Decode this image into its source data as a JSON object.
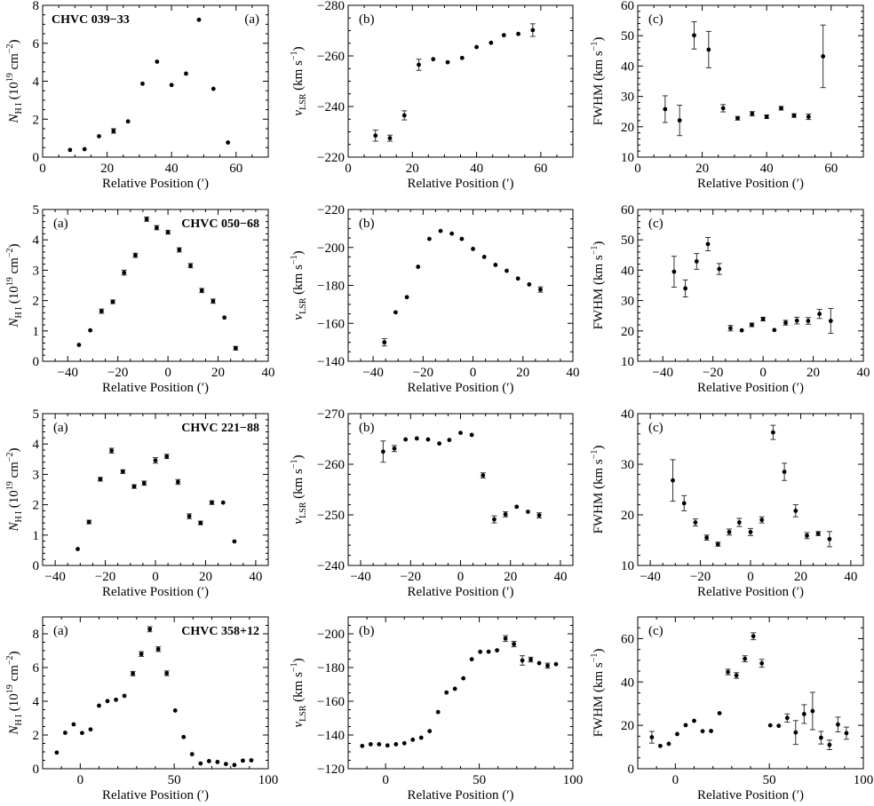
{
  "figure": {
    "xlabel": "Relative Position (′)"
  },
  "chart_data": [
    {
      "type": "scatter",
      "row": 0,
      "col": 0,
      "panel_tag": "(a)",
      "cloud_label": "CHVC 039−33",
      "ylabel": "N_HI (10^19 cm^-2)",
      "xlabel": "Relative Position (′)",
      "xlim": [
        0,
        70
      ],
      "ylim": [
        0,
        8
      ],
      "xticks": [
        0,
        20,
        40,
        60
      ],
      "yticks": [
        0,
        2,
        4,
        6,
        8
      ],
      "x": [
        8.5,
        13,
        17.5,
        22,
        26.5,
        31,
        35.5,
        40,
        44.5,
        48.5,
        53,
        57.5
      ],
      "y": [
        0.38,
        0.42,
        1.1,
        1.38,
        1.88,
        3.87,
        5.03,
        3.8,
        4.4,
        7.24,
        3.6,
        0.77
      ],
      "err": [
        0.05,
        0.05,
        0.07,
        0.12,
        0.07,
        0.08,
        0.08,
        0.07,
        0.07,
        0.07,
        0.07,
        0.08
      ],
      "y_inverted": false
    },
    {
      "type": "scatter",
      "row": 0,
      "col": 1,
      "panel_tag": "(b)",
      "ylabel": "v_LSR (km s^-1)",
      "xlabel": "Relative Position (′)",
      "xlim": [
        0,
        70
      ],
      "ylim": [
        -220,
        -280
      ],
      "xticks": [
        0,
        20,
        40,
        60
      ],
      "yticks": [
        -220,
        -240,
        -260,
        -280
      ],
      "x": [
        8.5,
        13,
        17.5,
        22,
        26.5,
        31,
        35.5,
        40,
        44.5,
        48.5,
        53,
        57.5
      ],
      "y": [
        -228.5,
        -227.5,
        -236.5,
        -256.5,
        -258.7,
        -257.5,
        -259.2,
        -263.5,
        -265.2,
        -268.2,
        -268.7,
        -270.2
      ],
      "err": [
        2.2,
        1.2,
        1.8,
        2.2,
        0.4,
        0.4,
        0.4,
        0.4,
        0.4,
        0.4,
        0.4,
        2.5
      ]
    },
    {
      "type": "scatter",
      "row": 0,
      "col": 2,
      "panel_tag": "(c)",
      "ylabel": "FWHM (km s^-1)",
      "xlabel": "Relative Position (′)",
      "xlim": [
        0,
        70
      ],
      "ylim": [
        10,
        60
      ],
      "xticks": [
        0,
        20,
        40,
        60
      ],
      "yticks": [
        10,
        20,
        30,
        40,
        50,
        60
      ],
      "x": [
        8.5,
        13,
        17.5,
        22,
        26.5,
        31,
        35.5,
        40,
        44.5,
        48.5,
        53,
        57.5
      ],
      "y": [
        25.8,
        22.1,
        50.1,
        45.4,
        26.1,
        22.8,
        24.3,
        23.3,
        26.1,
        23.7,
        23.3,
        43.2
      ],
      "err": [
        4.4,
        5.0,
        4.5,
        6.0,
        1.2,
        0.6,
        0.7,
        0.6,
        0.6,
        0.6,
        0.9,
        10.3
      ]
    },
    {
      "type": "scatter",
      "row": 1,
      "col": 0,
      "panel_tag": "(a)",
      "cloud_label": "CHVC 050−68",
      "ylabel": "N_HI (10^19 cm^-2)",
      "xlabel": "Relative Position (′)",
      "xlim": [
        -50,
        40
      ],
      "ylim": [
        0,
        5
      ],
      "xticks": [
        -40,
        -20,
        0,
        20,
        40
      ],
      "yticks": [
        0,
        1,
        2,
        3,
        4,
        5
      ],
      "x": [
        -35.5,
        -31,
        -26.5,
        -22,
        -17.5,
        -13,
        -8.5,
        -4.5,
        0,
        4.5,
        9,
        13.5,
        18,
        22.5,
        27
      ],
      "y": [
        0.54,
        1.02,
        1.65,
        1.96,
        2.92,
        3.49,
        4.68,
        4.4,
        4.25,
        3.67,
        3.15,
        2.33,
        1.98,
        1.44,
        0.43
      ],
      "err": [
        0.05,
        0.05,
        0.07,
        0.06,
        0.08,
        0.07,
        0.07,
        0.07,
        0.06,
        0.07,
        0.07,
        0.07,
        0.07,
        0.05,
        0.06
      ]
    },
    {
      "type": "scatter",
      "row": 1,
      "col": 1,
      "panel_tag": "(b)",
      "ylabel": "v_LSR (km s^-1)",
      "xlabel": "Relative Position (′)",
      "xlim": [
        -50,
        40
      ],
      "ylim": [
        -140,
        -220
      ],
      "xticks": [
        -40,
        -20,
        0,
        20,
        40
      ],
      "yticks": [
        -140,
        -160,
        -180,
        -200,
        -220
      ],
      "x": [
        -35.5,
        -31,
        -26.5,
        -22,
        -17.5,
        -13,
        -8.5,
        -4.5,
        0,
        4.5,
        9,
        13.5,
        18,
        22.5,
        27
      ],
      "y": [
        -150,
        -165.8,
        -173.8,
        -189.8,
        -204.5,
        -208.7,
        -207.3,
        -204.5,
        -199.2,
        -195,
        -190.8,
        -187.7,
        -183.6,
        -180.5,
        -177.8
      ],
      "err": [
        1.9,
        0.9,
        0.9,
        0.9,
        0.4,
        0.4,
        0.4,
        0.4,
        0.4,
        0.4,
        0.4,
        0.4,
        0.4,
        0.4,
        1.4
      ]
    },
    {
      "type": "scatter",
      "row": 1,
      "col": 2,
      "panel_tag": "(c)",
      "ylabel": "FWHM (km s^-1)",
      "xlabel": "Relative Position (′)",
      "xlim": [
        -50,
        40
      ],
      "ylim": [
        10,
        60
      ],
      "xticks": [
        -40,
        -20,
        0,
        20,
        40
      ],
      "yticks": [
        10,
        20,
        30,
        40,
        50,
        60
      ],
      "x": [
        -35.5,
        -31,
        -26.5,
        -22,
        -17.5,
        -13,
        -8.5,
        -4.5,
        0,
        4.5,
        9,
        13.5,
        18,
        22.5,
        27
      ],
      "y": [
        39.5,
        34,
        42.9,
        48.6,
        40.4,
        20.9,
        20.2,
        22,
        23.9,
        20.3,
        22.7,
        23.4,
        23.3,
        25.6,
        23.3
      ],
      "err": [
        5.1,
        2.8,
        2.6,
        2.2,
        1.8,
        0.9,
        0.5,
        0.6,
        0.6,
        0.5,
        0.8,
        1.1,
        1.1,
        1.5,
        4.1
      ]
    },
    {
      "type": "scatter",
      "row": 2,
      "col": 0,
      "panel_tag": "(a)",
      "cloud_label": "CHVC 221−88",
      "ylabel": "N_HI (10^19 cm^-2)",
      "xlabel": "Relative Position (′)",
      "xlim": [
        -45,
        45
      ],
      "ylim": [
        0,
        5
      ],
      "xticks": [
        -40,
        -20,
        0,
        20,
        40
      ],
      "yticks": [
        0,
        1,
        2,
        3,
        4,
        5
      ],
      "x": [
        -31,
        -26.5,
        -22,
        -17.5,
        -13,
        -8.5,
        -4.5,
        0,
        4.5,
        9,
        13.5,
        18,
        22.5,
        27,
        31.5
      ],
      "y": [
        0.54,
        1.43,
        2.84,
        3.78,
        3.09,
        2.6,
        2.71,
        3.46,
        3.59,
        2.75,
        1.62,
        1.4,
        2.07,
        2.07,
        0.79
      ],
      "err": [
        0.05,
        0.06,
        0.06,
        0.08,
        0.06,
        0.06,
        0.07,
        0.09,
        0.07,
        0.08,
        0.08,
        0.06,
        0.06,
        0.04,
        0.04
      ]
    },
    {
      "type": "scatter",
      "row": 2,
      "col": 1,
      "panel_tag": "(b)",
      "ylabel": "v_LSR (km s^-1)",
      "xlabel": "Relative Position (′)",
      "xlim": [
        -45,
        45
      ],
      "ylim": [
        -240,
        -270
      ],
      "xticks": [
        -40,
        -20,
        0,
        20,
        40
      ],
      "yticks": [
        -240,
        -250,
        -260,
        -270
      ],
      "x": [
        -31,
        -26.5,
        -22,
        -17.5,
        -13,
        -8.5,
        -4.5,
        0,
        4.5,
        9,
        13.5,
        18,
        22.5,
        27,
        31.5
      ],
      "y": [
        -262.5,
        -263.1,
        -264.9,
        -265.1,
        -264.9,
        -264.1,
        -264.8,
        -266.2,
        -265.8,
        -257.8,
        -249.1,
        -250.1,
        -251.6,
        -250.6,
        -249.9
      ],
      "err": [
        2.1,
        0.6,
        0.2,
        0.2,
        0.2,
        0.2,
        0.2,
        0.2,
        0.2,
        0.5,
        0.7,
        0.5,
        0.2,
        0.2,
        0.5
      ]
    },
    {
      "type": "scatter",
      "row": 2,
      "col": 2,
      "panel_tag": "(c)",
      "ylabel": "FWHM (km s^-1)",
      "xlabel": "Relative Position (′)",
      "xlim": [
        -45,
        45
      ],
      "ylim": [
        10,
        40
      ],
      "xticks": [
        -40,
        -20,
        0,
        20,
        40
      ],
      "yticks": [
        10,
        20,
        30,
        40
      ],
      "x": [
        -31,
        -26.5,
        -22,
        -17.5,
        -13,
        -8.5,
        -4.5,
        0,
        4.5,
        9,
        13.5,
        18,
        22.5,
        27,
        31.5
      ],
      "y": [
        26.8,
        22.3,
        18.5,
        15.5,
        14.2,
        16.6,
        18.5,
        16.6,
        19,
        36.3,
        28.5,
        20.8,
        15.9,
        16.3,
        15.2
      ],
      "err": [
        4.1,
        1.5,
        0.7,
        0.5,
        0.4,
        0.6,
        0.8,
        0.7,
        0.6,
        1.4,
        1.7,
        1.2,
        0.6,
        0.4,
        1.5
      ]
    },
    {
      "type": "scatter",
      "row": 3,
      "col": 0,
      "panel_tag": "(a)",
      "cloud_label": "CHVC 358+12",
      "ylabel": "N_HI (10^19 cm^-2)",
      "xlabel": "Relative Position (′)",
      "xlim": [
        -20,
        100
      ],
      "ylim": [
        0,
        9
      ],
      "xticks": [
        0,
        50,
        100
      ],
      "yticks": [
        0,
        2,
        4,
        6,
        8
      ],
      "x": [
        -12.5,
        -8,
        -3.5,
        1,
        5.5,
        10,
        14.5,
        19,
        23.5,
        28,
        32.5,
        37,
        41.5,
        46,
        50.5,
        55,
        59.5,
        64,
        68.5,
        73,
        77.5,
        82,
        86.5,
        91
      ],
      "y": [
        0.96,
        2.13,
        2.63,
        2.12,
        2.33,
        3.74,
        4.01,
        4.09,
        4.32,
        5.64,
        6.8,
        8.27,
        7.09,
        5.66,
        3.45,
        1.88,
        0.86,
        0.31,
        0.45,
        0.4,
        0.28,
        0.22,
        0.48,
        0.5
      ],
      "err": [
        0.07,
        0.06,
        0.06,
        0.06,
        0.06,
        0.07,
        0.07,
        0.06,
        0.07,
        0.13,
        0.14,
        0.15,
        0.14,
        0.14,
        0.07,
        0.06,
        0.05,
        0.04,
        0.04,
        0.04,
        0.04,
        0.04,
        0.04,
        0.04
      ]
    },
    {
      "type": "scatter",
      "row": 3,
      "col": 1,
      "panel_tag": "(b)",
      "ylabel": "v_LSR (km s^-1)",
      "xlabel": "Relative Position (′)",
      "xlim": [
        -20,
        100
      ],
      "ylim": [
        -120,
        -210
      ],
      "xticks": [
        0,
        50,
        100
      ],
      "yticks": [
        -120,
        -140,
        -160,
        -180,
        -200
      ],
      "x": [
        -12.5,
        -8,
        -3.5,
        1,
        5.5,
        10,
        14.5,
        19,
        23.5,
        28,
        32.5,
        37,
        41.5,
        46,
        50.5,
        55,
        59.5,
        64,
        68.5,
        73,
        77.5,
        82,
        86.5,
        91
      ],
      "y": [
        -133.5,
        -134.5,
        -134.5,
        -133.8,
        -134.5,
        -135.1,
        -137.2,
        -138.4,
        -142.3,
        -153.6,
        -165.2,
        -167.4,
        -173.6,
        -184.9,
        -189.3,
        -189.4,
        -190.2,
        -197.2,
        -193.9,
        -184.2,
        -184.7,
        -182.6,
        -181.1,
        -182
      ],
      "err": [
        0.2,
        0.2,
        0.2,
        0.2,
        0.2,
        0.2,
        0.2,
        0.2,
        0.2,
        0.2,
        0.2,
        0.2,
        0.3,
        0.2,
        0.2,
        0.2,
        0.3,
        1.7,
        1.6,
        2.8,
        1.4,
        1,
        1.5,
        0.8
      ]
    },
    {
      "type": "scatter",
      "row": 3,
      "col": 2,
      "panel_tag": "(c)",
      "ylabel": "FWHM (km s^-1)",
      "xlabel": "Relative Position (′)",
      "xlim": [
        -20,
        100
      ],
      "ylim": [
        0,
        70
      ],
      "xticks": [
        0,
        50,
        100
      ],
      "yticks": [
        0,
        20,
        40,
        60
      ],
      "x": [
        -12.5,
        -8,
        -3.5,
        1,
        5.5,
        10,
        14.5,
        19,
        23.5,
        28,
        32.5,
        37,
        41.5,
        46,
        50.5,
        55,
        59.5,
        64,
        68.5,
        73,
        77.5,
        82,
        86.5,
        91
      ],
      "y": [
        14.5,
        10.5,
        11.5,
        16,
        20.1,
        22.1,
        17.3,
        17.4,
        25.6,
        44.6,
        43,
        50.7,
        61.1,
        48.6,
        20,
        19.8,
        23.4,
        16.7,
        25.2,
        26.6,
        14.3,
        11,
        20.4,
        16.4
      ],
      "err": [
        2.7,
        0.5,
        0.7,
        0.8,
        0.8,
        0.7,
        0.6,
        0.7,
        0.8,
        1.3,
        1.3,
        1.4,
        1.6,
        1.8,
        0.6,
        0.7,
        1.9,
        5.5,
        4.3,
        8.6,
        2.9,
        2.2,
        3.4,
        2.8
      ]
    }
  ]
}
